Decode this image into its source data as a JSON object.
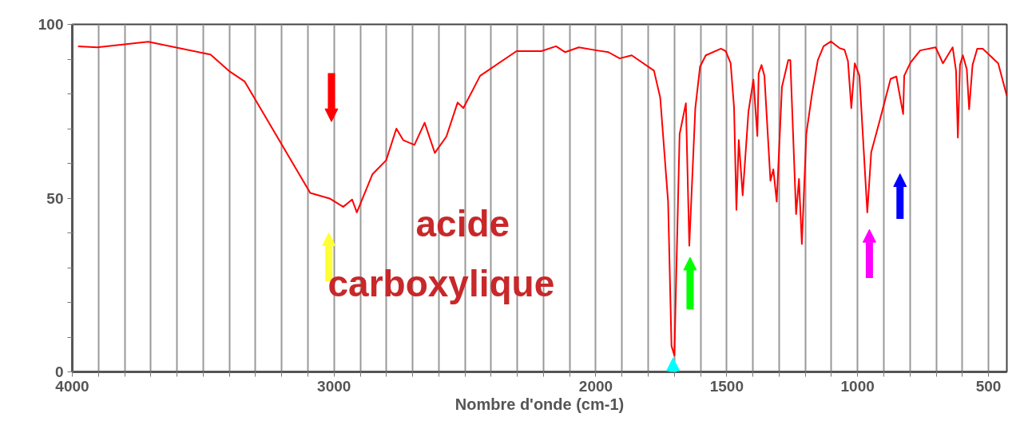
{
  "chart_data": {
    "type": "line",
    "xlabel": "Nombre d'onde (cm-1)",
    "x": [
      3978,
      3905,
      3710,
      3472,
      3398,
      3342,
      3091,
      3017,
      2965,
      2931,
      2913,
      2853,
      2801,
      2762,
      2736,
      2693,
      2654,
      2615,
      2571,
      2528,
      2506,
      2442,
      2303,
      2208,
      2152,
      2117,
      2065,
      1996,
      1952,
      1909,
      1863,
      1778,
      1754,
      1724,
      1711,
      1700,
      1680,
      1656,
      1643,
      1620,
      1602,
      1580,
      1522,
      1504,
      1485,
      1472,
      1463,
      1454,
      1439,
      1417,
      1398,
      1383,
      1378,
      1367,
      1356,
      1333,
      1322,
      1309,
      1289,
      1265,
      1257,
      1235,
      1224,
      1213,
      1196,
      1174,
      1152,
      1130,
      1102,
      1070,
      1050,
      1037,
      1024,
      1011,
      993,
      963,
      948,
      917,
      874,
      852,
      826,
      822,
      798,
      761,
      702,
      674,
      637,
      624,
      617,
      609,
      598,
      583,
      574,
      561,
      543,
      522,
      463,
      430
    ],
    "series": [
      {
        "color": "#ff0000",
        "values": [
          93.7,
          93.4,
          95,
          91.3,
          86.4,
          83.6,
          51.5,
          49.9,
          47.5,
          49.6,
          45.9,
          56.9,
          60.9,
          70,
          66.7,
          65.3,
          71.7,
          63,
          67.7,
          77.5,
          75.9,
          85.2,
          92.3,
          92.3,
          93.7,
          92,
          93.4,
          92.5,
          92,
          90.2,
          91.1,
          86.7,
          78.9,
          49,
          7.5,
          4.7,
          68.4,
          77.3,
          36.3,
          75.9,
          87.8,
          91.1,
          93,
          92.3,
          88.8,
          76.1,
          46.6,
          66.7,
          50.8,
          74.9,
          84.1,
          67.9,
          85.9,
          88.3,
          85.2,
          55,
          58.3,
          49,
          82,
          89.7,
          89.7,
          45.4,
          55.5,
          36.8,
          68.4,
          80.1,
          89.7,
          93.7,
          95.1,
          93.2,
          92.7,
          89.5,
          75.9,
          88.8,
          85.2,
          45.9,
          63.2,
          71.9,
          84.3,
          85,
          74.2,
          85.2,
          89,
          92.5,
          93.4,
          88.8,
          93.4,
          86.7,
          67.4,
          88.3,
          91.1,
          87.1,
          75.6,
          88.3,
          93,
          93,
          88.8,
          79.4
        ]
      }
    ],
    "xlim": [
      4000,
      430
    ],
    "ylim": [
      0,
      100
    ],
    "xticks": [
      4000,
      {
        "value": 3900,
        "label": null
      },
      {
        "value": 3800,
        "label": null
      },
      {
        "value": 3700,
        "label": null
      },
      {
        "value": 3600,
        "label": null
      },
      {
        "value": 3500,
        "label": null
      },
      {
        "value": 3400,
        "label": null
      },
      {
        "value": 3300,
        "label": null
      },
      {
        "value": 3200,
        "label": null
      },
      {
        "value": 3100,
        "label": null
      },
      3000,
      {
        "value": 2900,
        "label": null
      },
      {
        "value": 2800,
        "label": null
      },
      {
        "value": 2700,
        "label": null
      },
      {
        "value": 2600,
        "label": null
      },
      {
        "value": 2500,
        "label": null
      },
      {
        "value": 2400,
        "label": null
      },
      {
        "value": 2300,
        "label": null
      },
      {
        "value": 2200,
        "label": null
      },
      {
        "value": 2100,
        "label": null
      },
      2000,
      {
        "value": 1900,
        "label": null
      },
      {
        "value": 1800,
        "label": null
      },
      {
        "value": 1700,
        "label": null
      },
      {
        "value": 1600,
        "label": null
      },
      1500,
      {
        "value": 1400,
        "label": null
      },
      {
        "value": 1300,
        "label": null
      },
      {
        "value": 1200,
        "label": null
      },
      {
        "value": 1100,
        "label": null
      },
      1000,
      {
        "value": 900,
        "label": null
      },
      {
        "value": 800,
        "label": null
      },
      {
        "value": 700,
        "label": null
      },
      {
        "value": 600,
        "label": null
      },
      500
    ],
    "yticks": [
      0,
      {
        "value": 10,
        "label": null
      },
      {
        "value": 20,
        "label": null
      },
      {
        "value": 30,
        "label": null
      },
      {
        "value": 40,
        "label": null
      },
      50,
      {
        "value": 60,
        "label": null
      },
      {
        "value": 70,
        "label": null
      },
      {
        "value": 80,
        "label": null
      },
      {
        "value": 90,
        "label": null
      },
      100
    ],
    "grid": "x",
    "marker": "none",
    "line_style": "solid",
    "annotations": [
      "acide",
      "carboxylique"
    ]
  }
}
